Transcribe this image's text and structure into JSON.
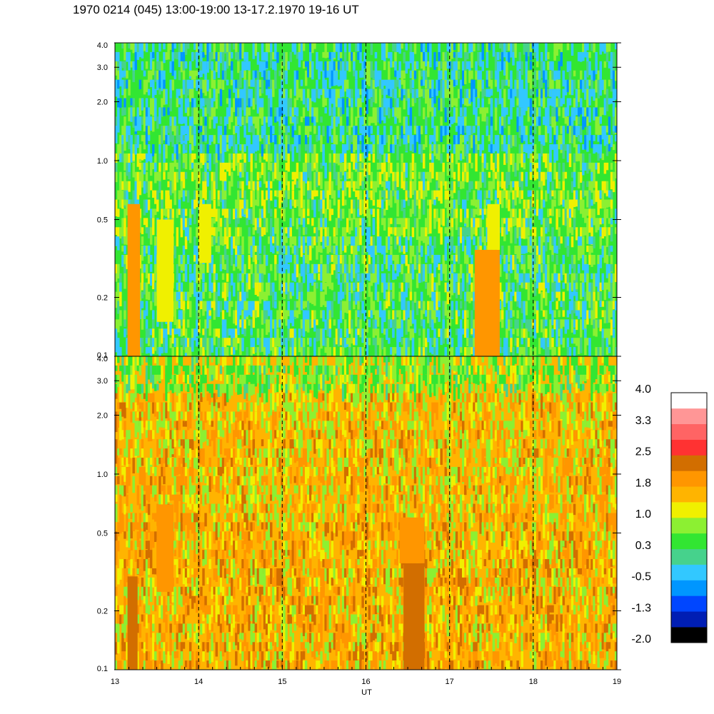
{
  "title": "1970 0214 (045) 13:00-19:00 13-17.2.1970  19-16 UT",
  "chart_data": {
    "type": "heatmap",
    "panels": [
      {
        "name": "",
        "y_scale": "log",
        "ylim": [
          0.1,
          4.0
        ],
        "yticks": [
          0.1,
          0.2,
          0.5,
          1.0,
          2.0,
          3.0,
          4.0
        ],
        "ytick_labels": [
          "0.1",
          "0.2",
          "0.5",
          "1.0",
          "2.0",
          "3.0",
          "4.0"
        ],
        "dominant_level": 0.3,
        "features": [
          {
            "x_range": [
              13.15,
              13.3
            ],
            "y_range": [
              0.1,
              0.6
            ],
            "level": 1.8
          },
          {
            "x_range": [
              13.5,
              13.7
            ],
            "y_range": [
              0.15,
              0.5
            ],
            "level": 1.0
          },
          {
            "x_range": [
              14.0,
              14.15
            ],
            "y_range": [
              0.3,
              0.6
            ],
            "level": 1.0
          },
          {
            "x_range": [
              17.3,
              17.6
            ],
            "y_range": [
              0.1,
              0.35
            ],
            "level": 1.8
          },
          {
            "x_range": [
              17.45,
              17.6
            ],
            "y_range": [
              0.35,
              0.6
            ],
            "level": 1.0
          }
        ]
      },
      {
        "name": "",
        "y_scale": "log",
        "ylim": [
          0.1,
          4.0
        ],
        "yticks": [
          0.1,
          0.2,
          0.5,
          1.0,
          2.0,
          3.0,
          4.0
        ],
        "ytick_labels": [
          "0.1",
          "0.2",
          "0.5",
          "1.0",
          "2.0",
          "3.0",
          "4.0"
        ],
        "dominant_level": 1.5,
        "features": [
          {
            "x_range": [
              13.15,
              13.27
            ],
            "y_range": [
              0.1,
              0.3
            ],
            "level": 2.5
          },
          {
            "x_range": [
              13.5,
              13.7
            ],
            "y_range": [
              0.25,
              0.7
            ],
            "level": 1.8
          },
          {
            "x_range": [
              16.45,
              16.7
            ],
            "y_range": [
              0.1,
              0.35
            ],
            "level": 2.5
          },
          {
            "x_range": [
              16.4,
              16.7
            ],
            "y_range": [
              0.35,
              0.6
            ],
            "level": 1.8
          }
        ]
      }
    ],
    "x_axis": {
      "label": "UT",
      "range": [
        13,
        19
      ],
      "ticks": [
        13,
        14,
        15,
        16,
        17,
        18,
        19
      ],
      "tick_labels": [
        "13",
        "14",
        "15",
        "16",
        "17",
        "18",
        "19"
      ]
    },
    "dashed_hour_lines": [
      14,
      15,
      16,
      17,
      18
    ],
    "colorbar": {
      "colors": [
        "#000000",
        "#001eb4",
        "#0046ff",
        "#0096ff",
        "#32c8ff",
        "#46d28c",
        "#32e632",
        "#8cf032",
        "#f0f000",
        "#ffb400",
        "#ff9600",
        "#d26e00",
        "#ff3232",
        "#ff6464",
        "#ff9696",
        "#ffffff"
      ],
      "labels": [
        "-2.0",
        "-1.3",
        "-0.5",
        "0.3",
        "1.0",
        "1.8",
        "2.5",
        "3.3",
        "4.0"
      ]
    }
  }
}
